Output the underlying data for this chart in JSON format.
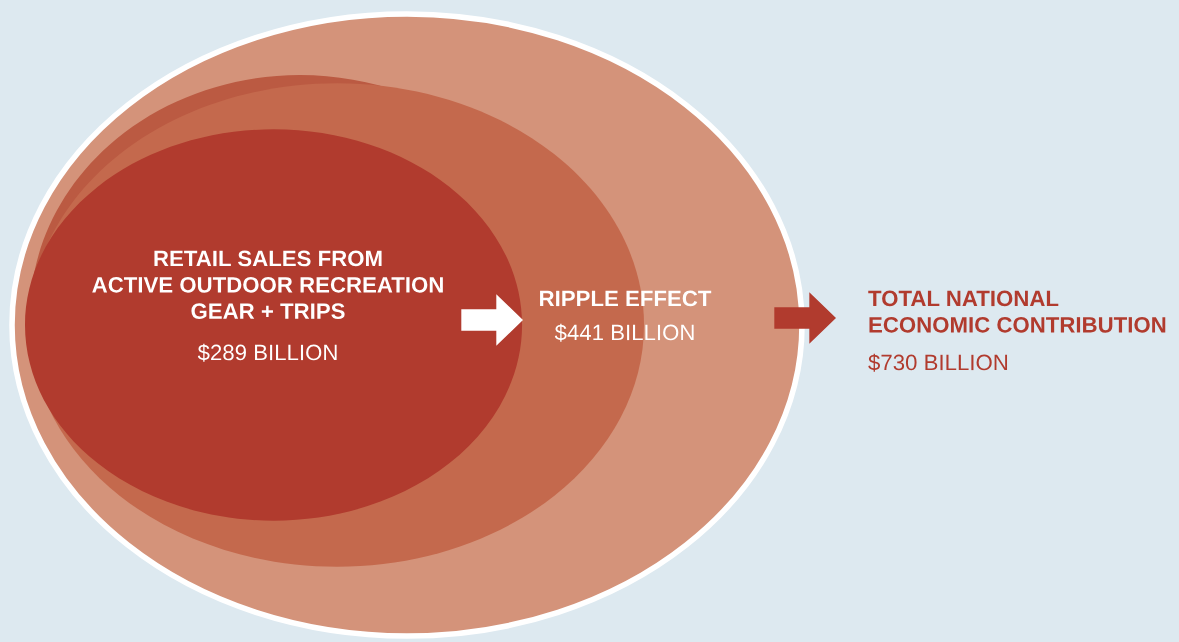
{
  "chart_data": {
    "type": "other",
    "categories": [
      "RETAIL SALES FROM\nACTIVE OUTDOOR RECREATION\nGEAR + TRIPS",
      "RIPPLE EFFECT",
      "TOTAL NATIONAL\nECONOMIC CONTRIBUTION"
    ],
    "values": [
      289,
      441,
      730
    ],
    "value_labels": [
      "$289 BILLION",
      "$441 BILLION",
      "$730 BILLION"
    ],
    "colors": [
      "#b13b2e",
      "#c4694d",
      "#d4937a"
    ]
  }
}
